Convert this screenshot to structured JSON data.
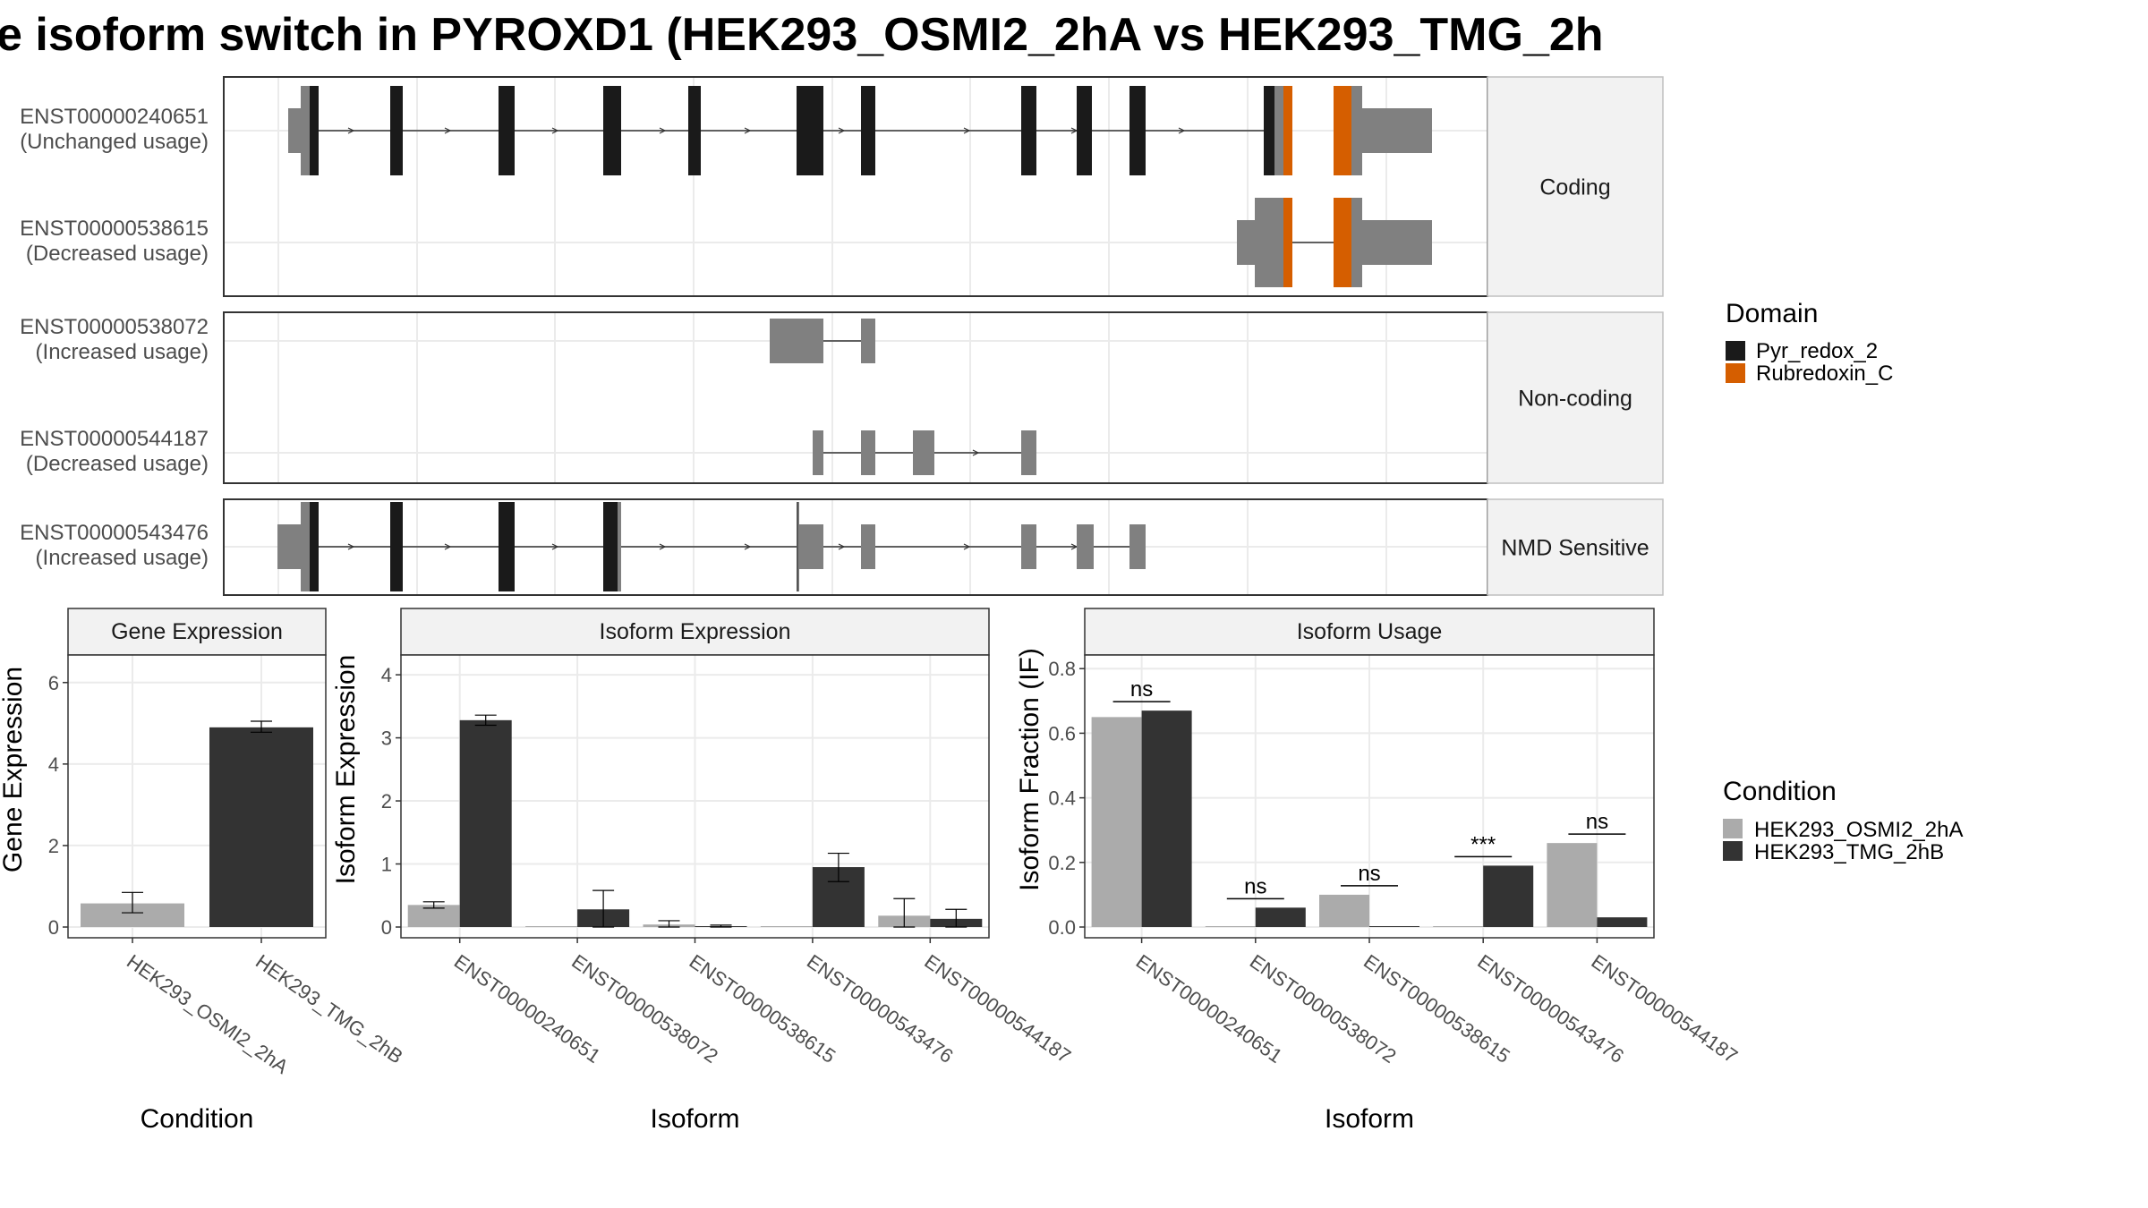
{
  "title": "e isoform switch in PYROXD1 (HEK293_OSMI2_2hA vs HEK293_TMG_2h",
  "colors": {
    "domain_pyr": "#1a1a1a",
    "domain_rub": "#d55e00",
    "exon_plain": "#808080",
    "cond_a": "#ababab",
    "cond_b": "#333333",
    "grid": "#ebebeb",
    "strip_fill": "#f2f2f2"
  },
  "structure": {
    "panels": [
      {
        "label": "Coding",
        "transcripts": [
          {
            "id": "ENST00000240651",
            "usage": "(Unchanged usage)"
          },
          {
            "id": "ENST00000538615",
            "usage": "(Decreased usage)"
          }
        ]
      },
      {
        "label": "Non-coding",
        "transcripts": [
          {
            "id": "ENST00000538072",
            "usage": "(Increased usage)"
          },
          {
            "id": "ENST00000544187",
            "usage": "(Decreased usage)"
          }
        ]
      },
      {
        "label": "NMD Sensitive",
        "transcripts": [
          {
            "id": "ENST00000543476",
            "usage": "(Increased usage)"
          }
        ]
      }
    ]
  },
  "domain_legend": {
    "title": "Domain",
    "items": [
      {
        "label": "Pyr_redox_2",
        "color": "#1a1a1a"
      },
      {
        "label": "Rubredoxin_C",
        "color": "#d55e00"
      }
    ]
  },
  "condition_legend": {
    "title": "Condition",
    "items": [
      {
        "label": "HEK293_OSMI2_2hA",
        "color": "#ababab"
      },
      {
        "label": "HEK293_TMG_2hB",
        "color": "#333333"
      }
    ]
  },
  "chart_data": [
    {
      "type": "bar",
      "title": "Gene Expression",
      "xlabel": "Condition",
      "ylabel": "Gene Expression",
      "ylim": [
        0,
        6.5
      ],
      "yticks": [
        "0",
        "2",
        "4",
        "6"
      ],
      "categories": [
        "HEK293_OSMI2_2hA",
        "HEK293_TMG_2hB"
      ],
      "values": [
        0.58,
        4.9
      ],
      "errors": [
        [
          0.35,
          0.85
        ],
        [
          4.78,
          5.05
        ]
      ]
    },
    {
      "type": "bar",
      "title": "Isoform Expression",
      "xlabel": "Isoform",
      "ylabel": "Isoform Expression",
      "ylim": [
        0,
        4.2
      ],
      "yticks": [
        "0",
        "1",
        "2",
        "3",
        "4"
      ],
      "categories": [
        "ENST00000240651",
        "ENST00000538072",
        "ENST00000538615",
        "ENST00000543476",
        "ENST00000544187"
      ],
      "series": [
        {
          "name": "HEK293_OSMI2_2hA",
          "values": [
            0.35,
            0.0,
            0.04,
            0.0,
            0.18
          ],
          "errors": [
            [
              0.3,
              0.4
            ],
            [
              0,
              0
            ],
            [
              0,
              0.1
            ],
            [
              0,
              0
            ],
            [
              0,
              0.45
            ]
          ]
        },
        {
          "name": "HEK293_TMG_2hB",
          "values": [
            3.28,
            0.28,
            0.01,
            0.95,
            0.13
          ],
          "errors": [
            [
              3.2,
              3.36
            ],
            [
              0,
              0.58
            ],
            [
              0,
              0.03
            ],
            [
              0.72,
              1.17
            ],
            [
              0,
              0.28
            ]
          ]
        }
      ]
    },
    {
      "type": "bar",
      "title": "Isoform Usage",
      "xlabel": "Isoform",
      "ylabel": "Isoform Fraction (IF)",
      "ylim": [
        0,
        0.82
      ],
      "yticks": [
        "0.0",
        "0.2",
        "0.4",
        "0.6",
        "0.8"
      ],
      "categories": [
        "ENST00000240651",
        "ENST00000538072",
        "ENST00000538615",
        "ENST00000543476",
        "ENST00000544187"
      ],
      "series": [
        {
          "name": "HEK293_OSMI2_2hA",
          "values": [
            0.65,
            0.0,
            0.1,
            0.0,
            0.26
          ]
        },
        {
          "name": "HEK293_TMG_2hB",
          "values": [
            0.67,
            0.06,
            0.0,
            0.19,
            0.03
          ]
        }
      ],
      "significance": [
        "ns",
        "ns",
        "ns",
        "***",
        "ns"
      ]
    }
  ]
}
